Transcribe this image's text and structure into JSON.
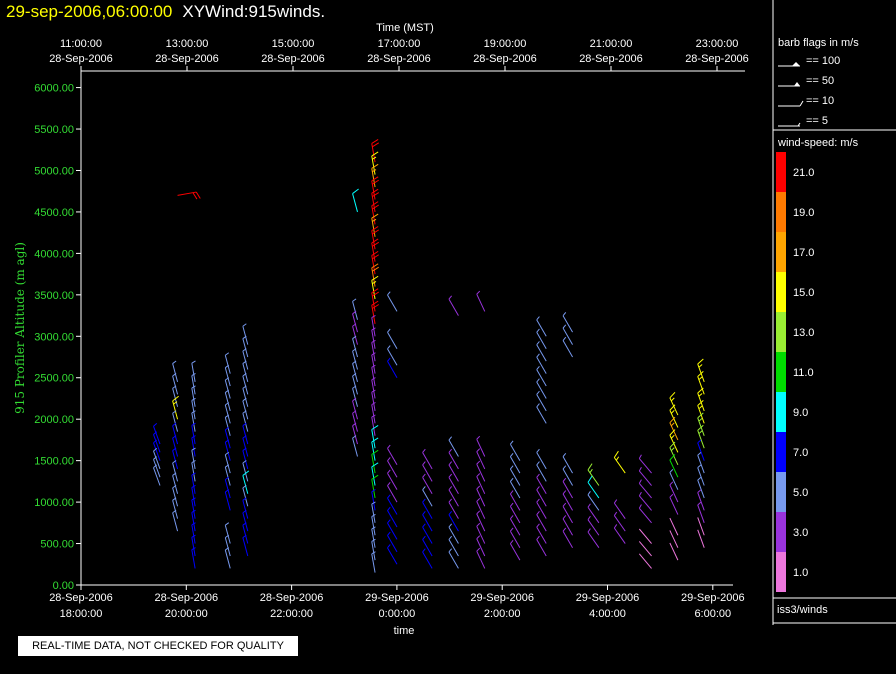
{
  "header": {
    "timestamp": "29-sep-2006,06:00:00",
    "product": "XYWind:915winds."
  },
  "notice": "REAL-TIME DATA, NOT CHECKED FOR QUALITY",
  "legend": {
    "barb_title": "barb flags in m/s",
    "barbs": [
      {
        "label": "== 100"
      },
      {
        "label": "== 50"
      },
      {
        "label": "== 10"
      },
      {
        "label": "== 5"
      }
    ],
    "speed_title": "wind-speed: m/s",
    "speed_bins": [
      {
        "label": "21.0",
        "color": "#ff0000"
      },
      {
        "label": "19.0",
        "color": "#ff7a00"
      },
      {
        "label": "17.0",
        "color": "#ffa500"
      },
      {
        "label": "15.0",
        "color": "#ffff00"
      },
      {
        "label": "13.0",
        "color": "#99ee33"
      },
      {
        "label": "11.0",
        "color": "#00dd00"
      },
      {
        "label": "9.0",
        "color": "#00ffff"
      },
      {
        "label": "7.0",
        "color": "#0000ff"
      },
      {
        "label": "5.0",
        "color": "#7799ee"
      },
      {
        "label": "3.0",
        "color": "#9933dd"
      },
      {
        "label": "1.0",
        "color": "#ee77dd"
      }
    ],
    "source": "iss3/winds"
  },
  "chart_data": {
    "type": "scatter",
    "subtype": "wind-barbs",
    "ylabel": "915 Profiler Altitude (m agl)",
    "xlabel": "time",
    "top_axis_title": "Time (MST)",
    "ylim": [
      0,
      6200
    ],
    "yticks": [
      "0.00",
      "500.00",
      "1000.00",
      "1500.00",
      "2000.00",
      "2500.00",
      "3000.00",
      "3500.00",
      "4000.00",
      "4500.00",
      "5000.00",
      "5500.00",
      "6000.00"
    ],
    "bottom_ticks": [
      {
        "date": "28-Sep-2006",
        "time": "18:00:00"
      },
      {
        "date": "28-Sep-2006",
        "time": "20:00:00"
      },
      {
        "date": "28-Sep-2006",
        "time": "22:00:00"
      },
      {
        "date": "29-Sep-2006",
        "time": "0:00:00"
      },
      {
        "date": "29-Sep-2006",
        "time": "2:00:00"
      },
      {
        "date": "29-Sep-2006",
        "time": "4:00:00"
      },
      {
        "date": "29-Sep-2006",
        "time": "6:00:00"
      }
    ],
    "top_ticks": [
      {
        "time": "11:00:00",
        "date": "28-Sep-2006"
      },
      {
        "time": "13:00:00",
        "date": "28-Sep-2006"
      },
      {
        "time": "15:00:00",
        "date": "28-Sep-2006"
      },
      {
        "time": "17:00:00",
        "date": "28-Sep-2006"
      },
      {
        "time": "19:00:00",
        "date": "28-Sep-2006"
      },
      {
        "time": "21:00:00",
        "date": "28-Sep-2006"
      },
      {
        "time": "23:00:00",
        "date": "28-Sep-2006"
      }
    ],
    "profiles": [
      {
        "time": "28-Sep-2006 19:30",
        "dir": 340,
        "points": [
          [
            1700,
            7
          ],
          [
            1600,
            7
          ],
          [
            1500,
            7
          ],
          [
            1400,
            5
          ],
          [
            1300,
            5
          ],
          [
            1200,
            5
          ]
        ]
      },
      {
        "time": "28-Sep-2006 19:50",
        "dir": 345,
        "points": [
          [
            2450,
            5
          ],
          [
            2300,
            5
          ],
          [
            2150,
            5
          ],
          [
            2000,
            15
          ],
          [
            1850,
            5
          ],
          [
            1700,
            7
          ],
          [
            1550,
            7
          ],
          [
            1400,
            7
          ],
          [
            1250,
            5
          ],
          [
            1100,
            5
          ],
          [
            950,
            5
          ],
          [
            800,
            5
          ],
          [
            650,
            5
          ]
        ]
      },
      {
        "time": "28-Sep-2006 20:10",
        "dir": 350,
        "points": [
          [
            2450,
            5
          ],
          [
            2300,
            5
          ],
          [
            2150,
            5
          ],
          [
            2000,
            5
          ],
          [
            1850,
            5
          ],
          [
            1700,
            7
          ],
          [
            1550,
            7
          ],
          [
            1400,
            5
          ],
          [
            1250,
            5
          ],
          [
            1100,
            7
          ],
          [
            950,
            7
          ],
          [
            800,
            7
          ],
          [
            650,
            7
          ],
          [
            500,
            7
          ],
          [
            350,
            7
          ],
          [
            200,
            7
          ]
        ]
      },
      {
        "time": "28-Sep-2006 20:50",
        "dir": 345,
        "points": [
          [
            2550,
            5
          ],
          [
            2400,
            5
          ],
          [
            2250,
            5
          ],
          [
            2100,
            5
          ],
          [
            1950,
            5
          ],
          [
            1800,
            5
          ],
          [
            1650,
            7
          ],
          [
            1500,
            7
          ],
          [
            1350,
            5
          ],
          [
            1200,
            5
          ],
          [
            1050,
            7
          ],
          [
            900,
            7
          ],
          [
            500,
            5
          ],
          [
            350,
            5
          ],
          [
            200,
            5
          ]
        ]
      },
      {
        "time": "28-Sep-2006 21:10",
        "dir": 345,
        "points": [
          [
            2900,
            5
          ],
          [
            2750,
            5
          ],
          [
            2600,
            5
          ],
          [
            2450,
            5
          ],
          [
            2300,
            5
          ],
          [
            2150,
            5
          ],
          [
            2000,
            5
          ],
          [
            1850,
            5
          ],
          [
            1700,
            7
          ],
          [
            1550,
            7
          ],
          [
            1400,
            7
          ],
          [
            1250,
            5
          ],
          [
            1100,
            9
          ],
          [
            950,
            5
          ],
          [
            800,
            7
          ],
          [
            650,
            7
          ],
          [
            500,
            7
          ],
          [
            350,
            7
          ]
        ]
      },
      {
        "time": "28-Sep-2006 19:50",
        "dir": 80,
        "points": [
          [
            4700,
            21
          ]
        ]
      },
      {
        "time": "28-Sep-2006 23:15",
        "dir": 345,
        "points": [
          [
            4500,
            9
          ],
          [
            3200,
            5
          ],
          [
            3050,
            3
          ],
          [
            2900,
            3
          ],
          [
            2750,
            5
          ],
          [
            2600,
            5
          ],
          [
            2450,
            5
          ],
          [
            2300,
            5
          ],
          [
            2150,
            5
          ],
          [
            2000,
            3
          ],
          [
            1850,
            3
          ],
          [
            1700,
            3
          ],
          [
            1550,
            5
          ]
        ]
      },
      {
        "time": "28-Sep-2006 23:35",
        "dir": 350,
        "points": [
          [
            5100,
            21
          ],
          [
            4950,
            15
          ],
          [
            4800,
            17
          ],
          [
            4650,
            21
          ],
          [
            4500,
            21
          ],
          [
            4350,
            21
          ],
          [
            4200,
            17
          ],
          [
            4050,
            21
          ],
          [
            3900,
            21
          ],
          [
            3750,
            21
          ],
          [
            3600,
            19
          ],
          [
            3450,
            15
          ],
          [
            3300,
            21
          ],
          [
            3150,
            21
          ],
          [
            3000,
            3
          ],
          [
            2850,
            3
          ],
          [
            2700,
            3
          ],
          [
            2550,
            3
          ],
          [
            2400,
            3
          ],
          [
            2250,
            3
          ],
          [
            2100,
            3
          ],
          [
            1950,
            3
          ],
          [
            1800,
            3
          ],
          [
            1650,
            9
          ],
          [
            1500,
            9
          ],
          [
            1350,
            11
          ],
          [
            1200,
            9
          ],
          [
            1050,
            11
          ],
          [
            900,
            7
          ],
          [
            750,
            5
          ],
          [
            600,
            5
          ],
          [
            450,
            5
          ],
          [
            300,
            5
          ],
          [
            150,
            5
          ]
        ]
      },
      {
        "time": "29-Sep-2006 0:00",
        "dir": 330,
        "points": [
          [
            3300,
            5
          ],
          [
            2850,
            5
          ],
          [
            2650,
            5
          ],
          [
            2500,
            7
          ],
          [
            1450,
            3
          ],
          [
            1300,
            3
          ],
          [
            1150,
            3
          ],
          [
            1000,
            3
          ],
          [
            850,
            7
          ],
          [
            700,
            7
          ],
          [
            550,
            7
          ],
          [
            400,
            7
          ],
          [
            250,
            7
          ]
        ]
      },
      {
        "time": "29-Sep-2006 0:40",
        "dir": 330,
        "points": [
          [
            1400,
            3
          ],
          [
            1250,
            3
          ],
          [
            1100,
            3
          ],
          [
            950,
            5
          ],
          [
            800,
            7
          ],
          [
            650,
            7
          ],
          [
            500,
            7
          ],
          [
            350,
            7
          ],
          [
            200,
            7
          ]
        ]
      },
      {
        "time": "29-Sep-2006 1:10",
        "dir": 330,
        "points": [
          [
            3250,
            3
          ],
          [
            1550,
            5
          ],
          [
            1400,
            3
          ],
          [
            1250,
            3
          ],
          [
            1100,
            3
          ],
          [
            950,
            3
          ],
          [
            800,
            3
          ],
          [
            650,
            7
          ],
          [
            500,
            5
          ],
          [
            350,
            5
          ],
          [
            200,
            5
          ]
        ]
      },
      {
        "time": "29-Sep-2006 1:40",
        "dir": 335,
        "points": [
          [
            3300,
            3
          ],
          [
            1550,
            3
          ],
          [
            1400,
            3
          ],
          [
            1250,
            3
          ],
          [
            1100,
            3
          ],
          [
            950,
            3
          ],
          [
            800,
            3
          ],
          [
            650,
            3
          ],
          [
            500,
            3
          ],
          [
            350,
            3
          ],
          [
            200,
            3
          ]
        ]
      },
      {
        "time": "29-Sep-2006 2:20",
        "dir": 330,
        "points": [
          [
            1500,
            5
          ],
          [
            1350,
            5
          ],
          [
            1200,
            5
          ],
          [
            1050,
            5
          ],
          [
            900,
            3
          ],
          [
            750,
            3
          ],
          [
            600,
            3
          ],
          [
            450,
            3
          ],
          [
            300,
            3
          ]
        ]
      },
      {
        "time": "29-Sep-2006 2:50",
        "dir": 330,
        "points": [
          [
            3000,
            5
          ],
          [
            2850,
            5
          ],
          [
            2700,
            5
          ],
          [
            2550,
            5
          ],
          [
            2400,
            5
          ],
          [
            2250,
            5
          ],
          [
            2100,
            5
          ],
          [
            1950,
            5
          ],
          [
            1400,
            5
          ],
          [
            1250,
            5
          ],
          [
            1100,
            3
          ],
          [
            950,
            3
          ],
          [
            800,
            3
          ],
          [
            650,
            3
          ],
          [
            500,
            3
          ],
          [
            350,
            3
          ]
        ]
      },
      {
        "time": "29-Sep-2006 3:20",
        "dir": 330,
        "points": [
          [
            3050,
            5
          ],
          [
            2900,
            5
          ],
          [
            2750,
            5
          ],
          [
            1350,
            5
          ],
          [
            1200,
            5
          ],
          [
            1050,
            3
          ],
          [
            900,
            3
          ],
          [
            750,
            3
          ],
          [
            600,
            3
          ],
          [
            450,
            3
          ]
        ]
      },
      {
        "time": "29-Sep-2006 3:50",
        "dir": 325,
        "points": [
          [
            1200,
            13
          ],
          [
            1050,
            9
          ],
          [
            900,
            5
          ],
          [
            750,
            3
          ],
          [
            600,
            3
          ],
          [
            450,
            3
          ]
        ]
      },
      {
        "time": "29-Sep-2006 4:20",
        "dir": 325,
        "points": [
          [
            1350,
            15
          ],
          [
            800,
            3
          ],
          [
            650,
            3
          ],
          [
            500,
            3
          ]
        ]
      },
      {
        "time": "29-Sep-2006 4:50",
        "dir": 320,
        "points": [
          [
            1350,
            3
          ],
          [
            1200,
            3
          ],
          [
            1050,
            3
          ],
          [
            900,
            3
          ],
          [
            750,
            3
          ],
          [
            500,
            1
          ],
          [
            350,
            1
          ],
          [
            200,
            1
          ]
        ]
      },
      {
        "time": "29-Sep-2006 5:20",
        "dir": 335,
        "points": [
          [
            2050,
            15
          ],
          [
            1900,
            15
          ],
          [
            1750,
            17
          ],
          [
            1600,
            15
          ],
          [
            1450,
            13
          ],
          [
            1300,
            11
          ],
          [
            1150,
            5
          ],
          [
            1000,
            3
          ],
          [
            850,
            3
          ],
          [
            600,
            1
          ],
          [
            450,
            1
          ],
          [
            300,
            1
          ]
        ]
      },
      {
        "time": "29-Sep-2006 5:50",
        "dir": 340,
        "points": [
          [
            2450,
            15
          ],
          [
            2300,
            15
          ],
          [
            2100,
            15
          ],
          [
            1950,
            15
          ],
          [
            1800,
            13
          ],
          [
            1650,
            13
          ],
          [
            1500,
            7
          ],
          [
            1350,
            5
          ],
          [
            1200,
            5
          ],
          [
            1050,
            5
          ],
          [
            900,
            3
          ],
          [
            750,
            3
          ],
          [
            600,
            1
          ],
          [
            450,
            1
          ]
        ]
      }
    ]
  }
}
